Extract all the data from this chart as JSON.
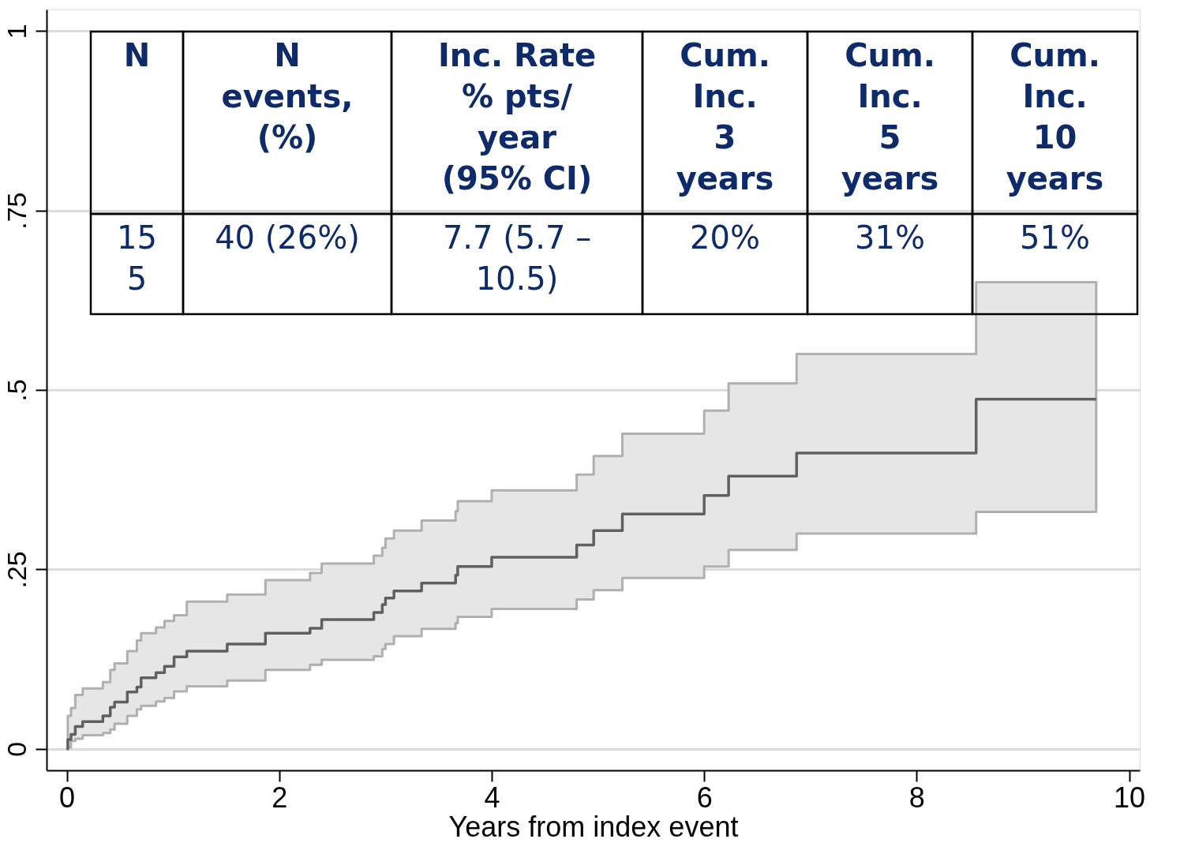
{
  "chart_data": {
    "type": "step",
    "xlabel": "Years from index event",
    "x": [
      0,
      0.01,
      0.04,
      0.08,
      0.15,
      0.34,
      0.41,
      0.45,
      0.57,
      0.66,
      0.7,
      0.84,
      0.92,
      1.01,
      1.13,
      1.51,
      1.87,
      2.29,
      2.4,
      2.89,
      2.97,
      3.0,
      3.08,
      3.34,
      3.66,
      3.68,
      4.0,
      4.8,
      4.96,
      5.23,
      6.0,
      6.23,
      6.87,
      8.56,
      9.69
    ],
    "series": [
      {
        "color": "#606060",
        "values": [
          0,
          0.013,
          0.02,
          0.031,
          0.038,
          0.046,
          0.058,
          0.065,
          0.079,
          0.086,
          0.099,
          0.106,
          0.115,
          0.128,
          0.136,
          0.146,
          0.161,
          0.168,
          0.18,
          0.19,
          0.201,
          0.21,
          0.22,
          0.231,
          0.242,
          0.254,
          0.267,
          0.284,
          0.304,
          0.327,
          0.353,
          0.38,
          0.412,
          0.487,
          0.487
        ],
        "lower": [
          0,
          0.002,
          0.011,
          0.014,
          0.019,
          0.022,
          0.027,
          0.035,
          0.046,
          0.055,
          0.06,
          0.066,
          0.071,
          0.08,
          0.087,
          0.095,
          0.11,
          0.117,
          0.124,
          0.129,
          0.139,
          0.146,
          0.157,
          0.167,
          0.175,
          0.184,
          0.195,
          0.208,
          0.221,
          0.238,
          0.254,
          0.277,
          0.3,
          0.33,
          0.33
        ],
        "upper": [
          0,
          0.046,
          0.057,
          0.075,
          0.084,
          0.093,
          0.11,
          0.119,
          0.136,
          0.151,
          0.161,
          0.169,
          0.178,
          0.186,
          0.205,
          0.215,
          0.235,
          0.245,
          0.258,
          0.269,
          0.28,
          0.293,
          0.304,
          0.318,
          0.331,
          0.345,
          0.36,
          0.382,
          0.408,
          0.439,
          0.471,
          0.509,
          0.55,
          0.65,
          0.65
        ]
      }
    ],
    "xlim": [
      -0.19,
      10.1
    ],
    "ylim": [
      -0.03,
      1.03
    ],
    "xticks": [
      0,
      2,
      4,
      6,
      8,
      10
    ],
    "yticks": [
      0,
      {
        "value": 0.25,
        "label": ".25"
      },
      {
        "value": 0.5,
        "label": ".5"
      },
      {
        "value": 0.75,
        "label": ".75"
      },
      1
    ],
    "grid": "y",
    "annotations": [
      "N",
      "N\nevents,\n(%)",
      "Inc. Rate\n% pts/\nyear\n(95% CI)",
      "Cum.\nInc.\n3\nyears",
      "Cum.\nInc.\n5\nyears",
      "Cum.\nInc.\n10\nyears",
      "15\n5",
      "40 (26%)",
      "7.7 (5.7 –\n10.5)",
      "20%",
      "31%",
      "51%"
    ]
  }
}
